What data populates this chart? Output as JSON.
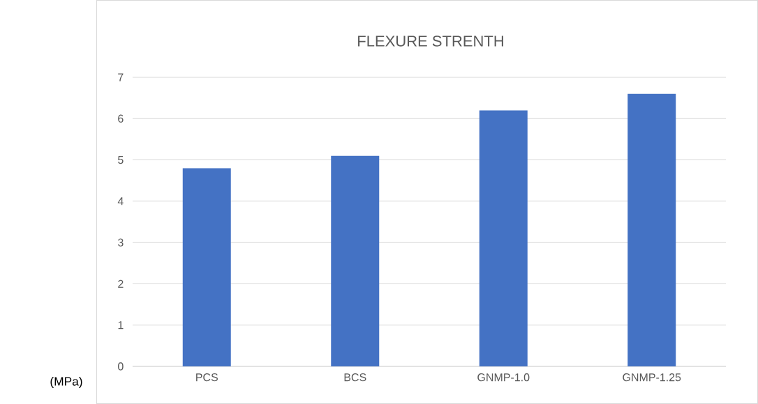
{
  "chart_data": {
    "type": "bar",
    "title": "FLEXURE STRENTH",
    "annotations": [
      "(MPa)"
    ],
    "categories": [
      "PCS",
      "BCS",
      "GNMP-1.0",
      "GNMP-1.25"
    ],
    "values": [
      4.8,
      5.1,
      6.2,
      6.6
    ],
    "color": "#4472c4",
    "ylim": [
      0,
      7
    ],
    "yticks": [
      0,
      1,
      2,
      3,
      4,
      5,
      6,
      7
    ],
    "grid": "y"
  }
}
